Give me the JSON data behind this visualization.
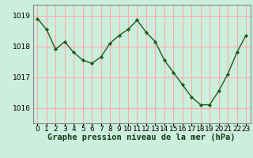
{
  "x": [
    0,
    1,
    2,
    3,
    4,
    5,
    6,
    7,
    8,
    9,
    10,
    11,
    12,
    13,
    14,
    15,
    16,
    17,
    18,
    19,
    20,
    21,
    22,
    23
  ],
  "y": [
    1018.9,
    1018.55,
    1017.9,
    1018.15,
    1017.8,
    1017.55,
    1017.45,
    1017.65,
    1018.1,
    1018.35,
    1018.55,
    1018.85,
    1018.45,
    1018.15,
    1017.55,
    1017.15,
    1016.75,
    1016.35,
    1016.1,
    1016.1,
    1016.55,
    1017.1,
    1017.8,
    1018.35
  ],
  "line_color": "#1a5c1a",
  "marker_color": "#1a5c1a",
  "bg_color": "#cceedd",
  "grid_color": "#ffaaaa",
  "spine_color": "#888888",
  "title": "Graphe pression niveau de la mer (hPa)",
  "ylim_min": 1015.5,
  "ylim_max": 1019.35,
  "yticks": [
    1016,
    1017,
    1018,
    1019
  ],
  "tick_fontsize": 6.5,
  "title_fontsize": 7.5
}
